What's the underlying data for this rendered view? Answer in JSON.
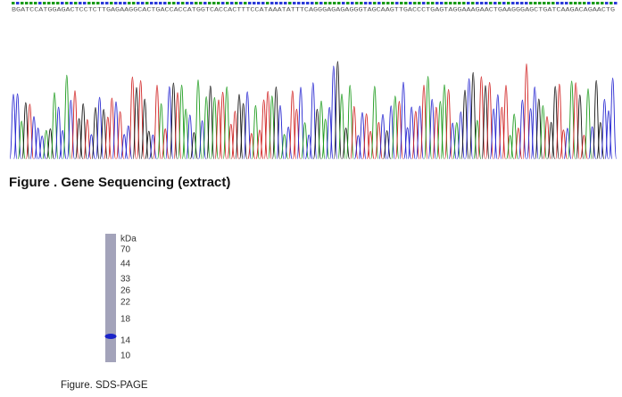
{
  "sequencing": {
    "sequence": "BGATCCATGGAGACTCCTCTTGAGAAGGCACTGACCACCATGGTCACCACTTTCCATAAATATTTCAGGGAGAGAGGGTAGCAAGTTGACCCTGAGTAGGAAAGAACTGAAGGGAGCTGATCAAGACAGAACTG",
    "caption": "Figure . Gene Sequencing (extract)"
  },
  "gel": {
    "unit": "kDa",
    "markers": [
      "70",
      "44",
      "33",
      "26",
      "22",
      "18",
      "14",
      "10"
    ],
    "caption": "Figure. SDS-PAGE"
  }
}
